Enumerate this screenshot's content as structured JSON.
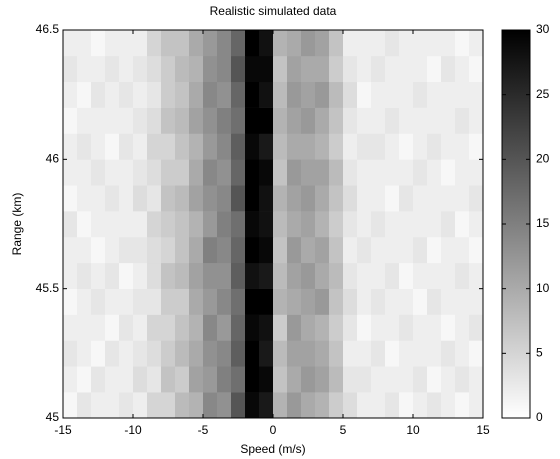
{
  "chart_data": {
    "type": "heatmap",
    "title": "Realistic simulated data",
    "xlabel": "Speed (m/s)",
    "ylabel": "Range (km)",
    "xlim": [
      -15,
      15
    ],
    "ylim": [
      45,
      46.5
    ],
    "xticks": [
      -15,
      -10,
      -5,
      0,
      5,
      10,
      15
    ],
    "yticks": [
      45,
      45.5,
      46,
      46.5
    ],
    "clim": [
      0,
      30
    ],
    "cticks": [
      0,
      5,
      10,
      15,
      20,
      25,
      30
    ],
    "colormap": "gray-reversed",
    "x": [
      -14.5,
      -13.5,
      -12.5,
      -11.5,
      -10.5,
      -9.5,
      -8.5,
      -7.5,
      -6.5,
      -5.5,
      -4.5,
      -3.5,
      -2.5,
      -1.5,
      -0.5,
      0.5,
      1.5,
      2.5,
      3.5,
      4.5,
      5.5,
      6.5,
      7.5,
      8.5,
      9.5,
      10.5,
      11.5,
      12.5,
      13.5,
      14.5
    ],
    "y": [
      45.05,
      45.15,
      45.25,
      45.35,
      45.45,
      45.55,
      45.65,
      45.75,
      45.85,
      45.95,
      46.05,
      46.15,
      46.25,
      46.35,
      46.45
    ],
    "z": [
      [
        1,
        3,
        2,
        2,
        3,
        2,
        5,
        5,
        8,
        9,
        14,
        13,
        20,
        29,
        27,
        9,
        12,
        10,
        9,
        6,
        4,
        2,
        2,
        3,
        1,
        2,
        3,
        2,
        1,
        2
      ],
      [
        2,
        1,
        3,
        2,
        2,
        4,
        3,
        7,
        6,
        11,
        12,
        15,
        17,
        30,
        29,
        7,
        10,
        12,
        11,
        8,
        3,
        3,
        2,
        2,
        2,
        3,
        1,
        2,
        3,
        2
      ],
      [
        3,
        2,
        1,
        3,
        2,
        3,
        4,
        6,
        8,
        10,
        13,
        14,
        19,
        30,
        27,
        8,
        11,
        11,
        10,
        7,
        2,
        2,
        3,
        1,
        2,
        2,
        2,
        3,
        2,
        1
      ],
      [
        2,
        2,
        2,
        1,
        3,
        2,
        5,
        5,
        7,
        9,
        14,
        12,
        18,
        29,
        28,
        6,
        12,
        10,
        9,
        6,
        3,
        1,
        2,
        2,
        3,
        2,
        2,
        1,
        2,
        3
      ],
      [
        1,
        2,
        3,
        2,
        2,
        3,
        3,
        6,
        6,
        10,
        12,
        14,
        17,
        30,
        30,
        9,
        10,
        11,
        12,
        7,
        4,
        2,
        3,
        2,
        2,
        1,
        3,
        2,
        2,
        2
      ],
      [
        2,
        3,
        2,
        3,
        1,
        2,
        4,
        7,
        8,
        11,
        13,
        13,
        19,
        28,
        27,
        8,
        11,
        12,
        10,
        8,
        3,
        2,
        2,
        3,
        1,
        2,
        2,
        2,
        3,
        2
      ],
      [
        2,
        2,
        1,
        2,
        3,
        3,
        4,
        5,
        7,
        10,
        15,
        14,
        18,
        30,
        29,
        7,
        12,
        10,
        11,
        7,
        2,
        3,
        2,
        2,
        2,
        3,
        1,
        2,
        2,
        1
      ],
      [
        3,
        1,
        2,
        2,
        2,
        2,
        5,
        6,
        7,
        9,
        12,
        15,
        17,
        29,
        28,
        8,
        10,
        11,
        9,
        6,
        3,
        2,
        3,
        2,
        2,
        2,
        2,
        3,
        1,
        2
      ],
      [
        1,
        2,
        2,
        3,
        2,
        4,
        3,
        7,
        8,
        11,
        13,
        14,
        20,
        30,
        28,
        9,
        11,
        12,
        10,
        7,
        4,
        2,
        2,
        1,
        3,
        2,
        2,
        2,
        2,
        3
      ],
      [
        2,
        2,
        3,
        2,
        2,
        3,
        4,
        6,
        6,
        10,
        14,
        13,
        18,
        30,
        29,
        7,
        12,
        11,
        11,
        8,
        3,
        2,
        2,
        2,
        2,
        3,
        2,
        1,
        2,
        2
      ],
      [
        2,
        3,
        2,
        1,
        3,
        2,
        5,
        5,
        7,
        9,
        12,
        14,
        19,
        29,
        27,
        8,
        10,
        10,
        9,
        6,
        2,
        3,
        3,
        2,
        1,
        2,
        3,
        2,
        2,
        1
      ],
      [
        1,
        2,
        2,
        2,
        2,
        3,
        4,
        7,
        8,
        11,
        13,
        15,
        17,
        30,
        30,
        9,
        11,
        12,
        10,
        7,
        3,
        2,
        2,
        3,
        2,
        2,
        2,
        2,
        3,
        2
      ],
      [
        2,
        1,
        3,
        2,
        3,
        2,
        3,
        6,
        7,
        10,
        14,
        13,
        18,
        30,
        28,
        8,
        12,
        11,
        12,
        8,
        4,
        1,
        2,
        2,
        2,
        3,
        2,
        2,
        2,
        2
      ],
      [
        3,
        2,
        2,
        3,
        2,
        3,
        4,
        6,
        8,
        9,
        13,
        14,
        20,
        29,
        29,
        7,
        11,
        10,
        10,
        6,
        3,
        2,
        3,
        2,
        2,
        2,
        1,
        3,
        2,
        1
      ],
      [
        2,
        2,
        1,
        2,
        2,
        2,
        5,
        7,
        7,
        10,
        12,
        14,
        18,
        30,
        28,
        9,
        10,
        12,
        11,
        7,
        2,
        2,
        2,
        3,
        2,
        2,
        2,
        2,
        1,
        2
      ]
    ]
  }
}
